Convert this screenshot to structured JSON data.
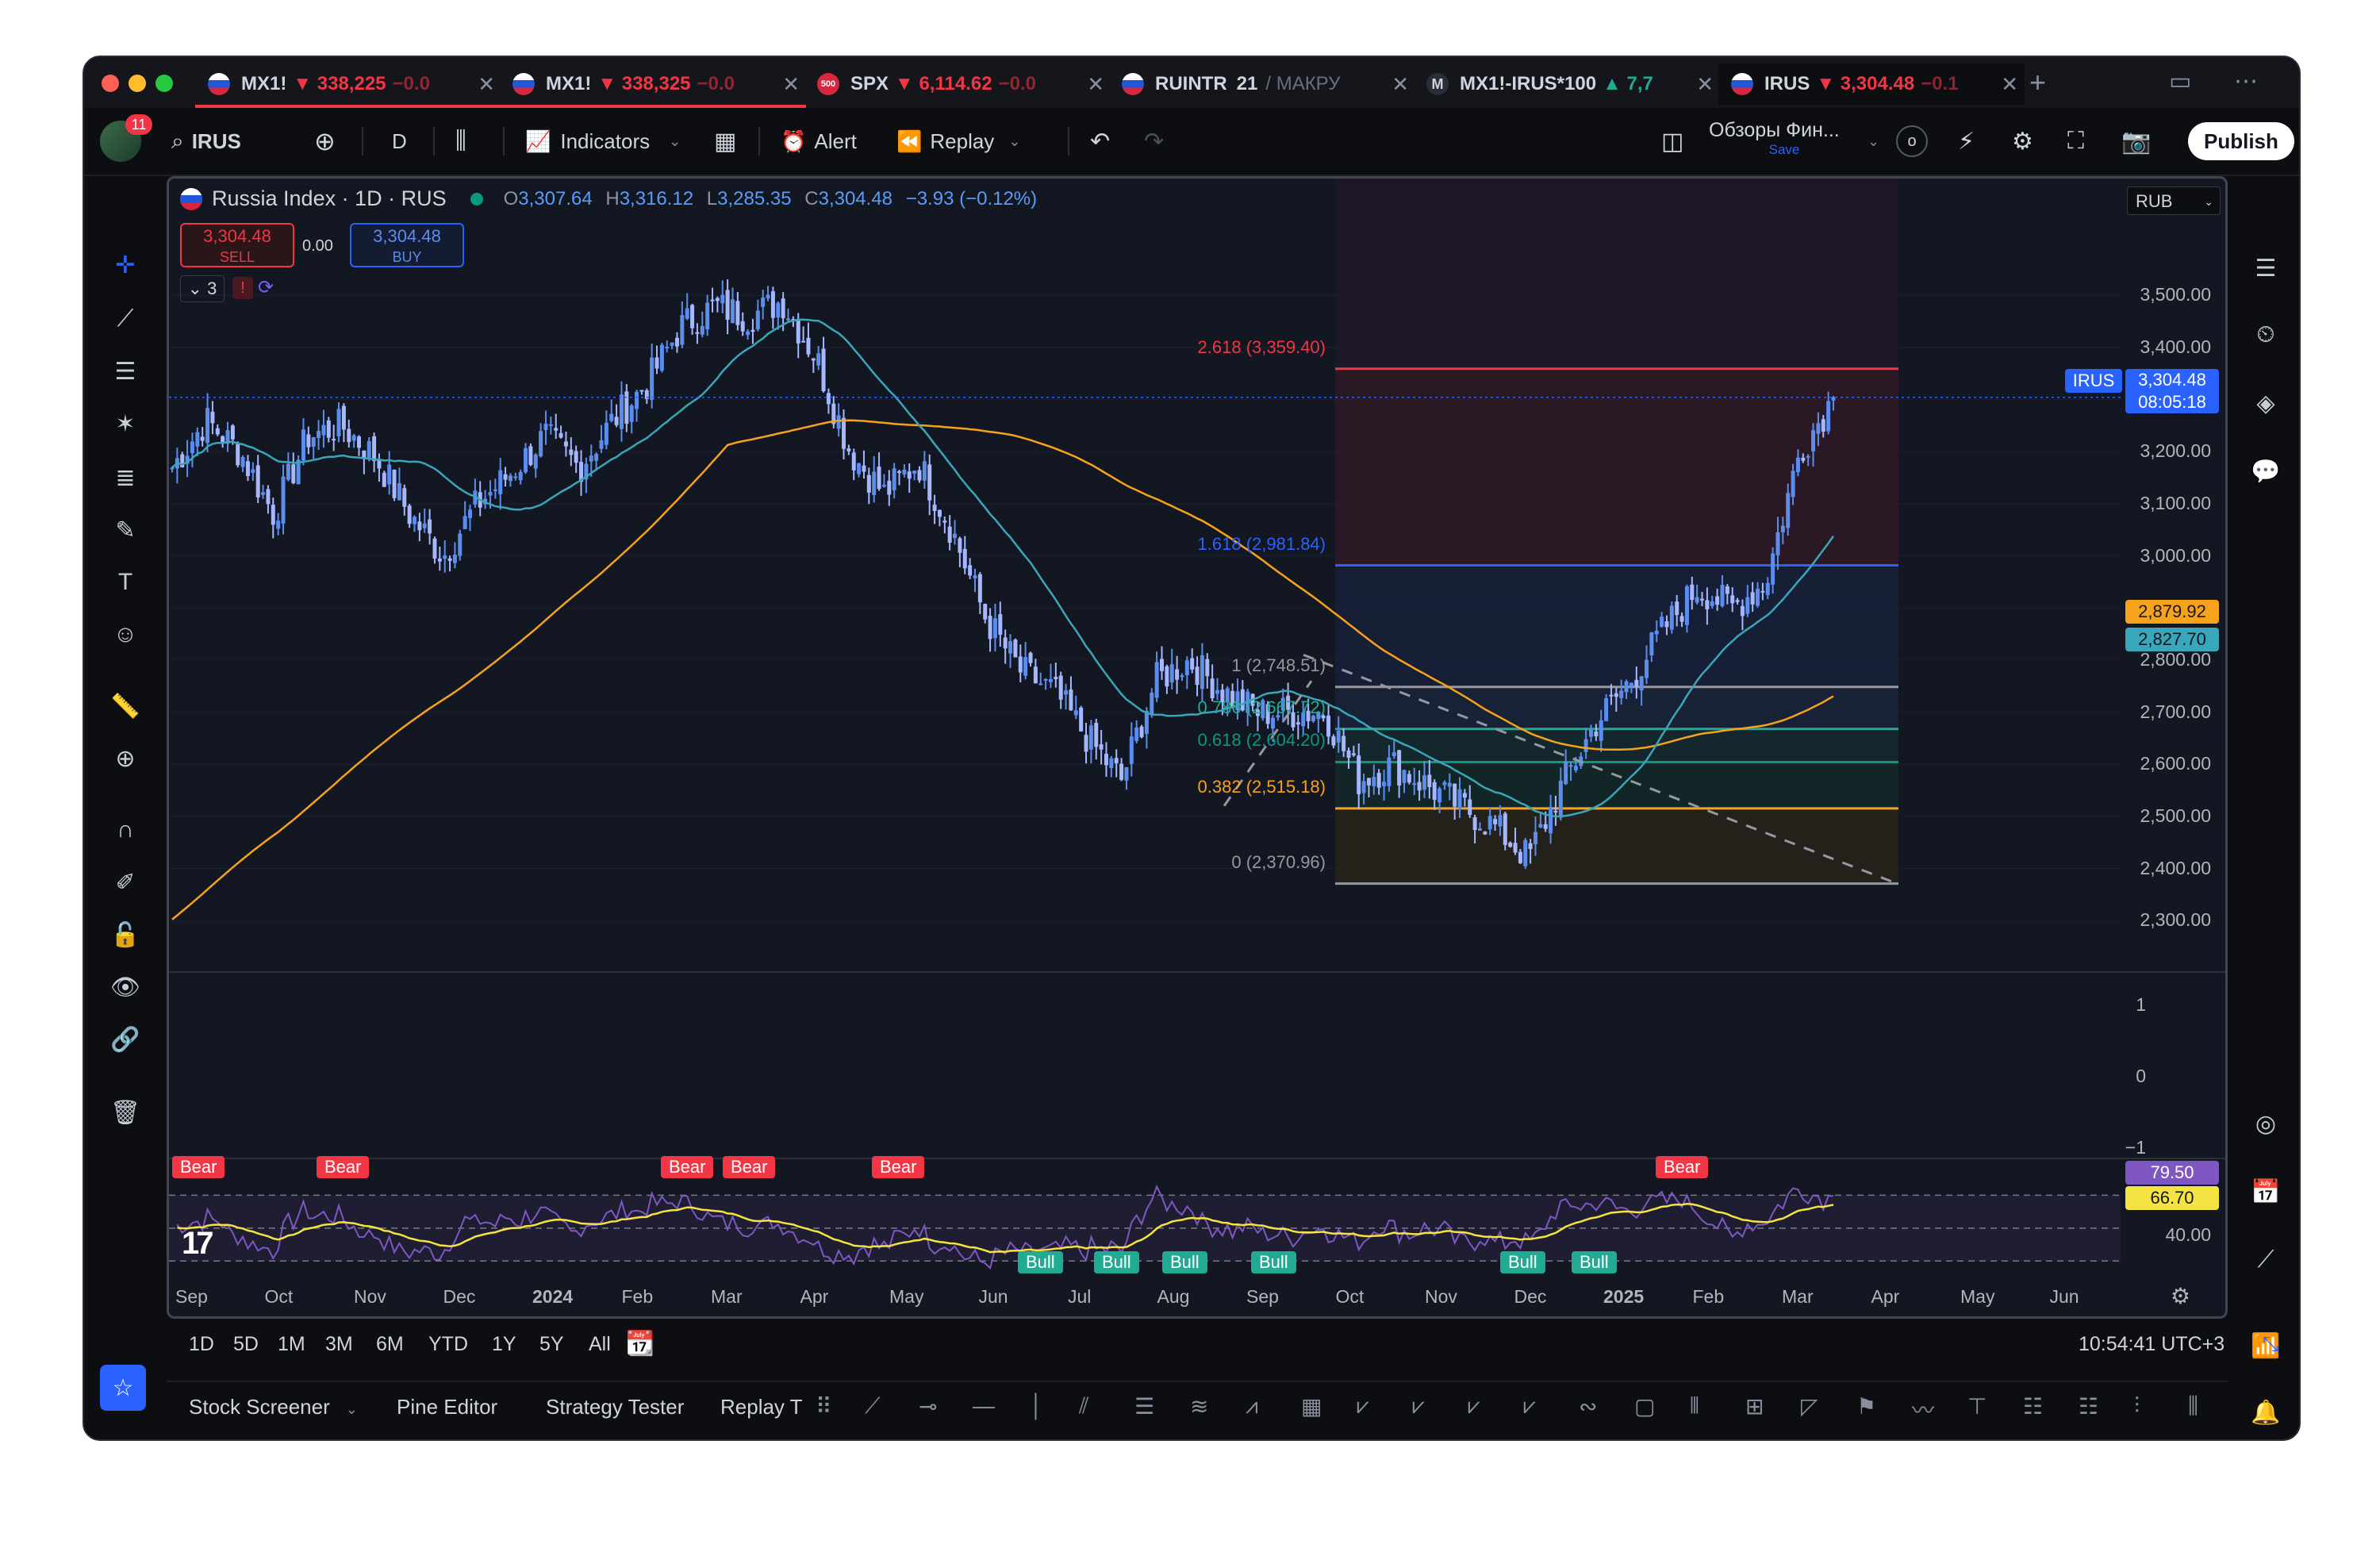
{
  "tabs": [
    {
      "symbol": "MX1!",
      "price": "▼ 338,225",
      "change": "−0.0",
      "active": false
    },
    {
      "symbol": "MX1!",
      "price": "▼ 338,325",
      "change": "−0.0",
      "active": false
    },
    {
      "symbol": "SPX",
      "price": "▼ 6,114.62",
      "change": "−0.0",
      "active": false,
      "flag_text": "500"
    },
    {
      "symbol": "RUINTR",
      "price": "21",
      "change": "/ МАКРУ",
      "active": false
    },
    {
      "symbol": "MX1!-IRUS*100",
      "price": "▲ 7,7",
      "change": "",
      "active": false,
      "flag_text": "M"
    },
    {
      "symbol": "IRUS",
      "price": "▼ 3,304.48",
      "change": "−0.1",
      "active": true
    }
  ],
  "toolbar": {
    "avatar_badge": "11",
    "symbol": "IRUS",
    "interval": "D",
    "indicators": "Indicators",
    "alert": "Alert",
    "replay": "Replay",
    "layout_name": "Обзоры Фин...",
    "layout_sub": "Save",
    "circle_letter": "o",
    "publish": "Publish"
  },
  "legend": {
    "title": "Russia Index · 1D · RUS",
    "o_label": "O",
    "o": "3,307.64",
    "h_label": "H",
    "h": "3,316.12",
    "l_label": "L",
    "l": "3,285.35",
    "c_label": "C",
    "c": "3,304.48",
    "change": "−3.93 (−0.12%)",
    "sell_price": "3,304.48",
    "sell_label": "SELL",
    "spread": "0.00",
    "buy_price": "3,304.48",
    "buy_label": "BUY",
    "collapsed_count": "3"
  },
  "currency": "RUB",
  "price_axis": [
    "3,500.00",
    "3,400.00",
    "3,300.00",
    "3,200.00",
    "3,100.00",
    "3,000.00",
    "2,900.00",
    "2,800.00",
    "2,700.00",
    "2,600.00",
    "2,500.00",
    "2,400.00",
    "2,300.00"
  ],
  "price_tags": {
    "symbol": "IRUS",
    "last": "3,304.48",
    "countdown": "08:05:18",
    "ma_orange": "2,879.92",
    "ma_teal": "2,827.70"
  },
  "fib_levels": [
    {
      "label": "2.618 (3,359.40)",
      "color": "#f23645"
    },
    {
      "label": "1.618 (2,981.84)",
      "color": "#2962ff"
    },
    {
      "label": "1 (2,748.51)",
      "color": "#9598a1"
    },
    {
      "label": "0.786 (2,667.72)",
      "color": "#22ab94"
    },
    {
      "label": "0.618 (2,604.20)",
      "color": "#089981"
    },
    {
      "label": "0.382 (2,515.18)",
      "color": "#f7a21b"
    },
    {
      "label": "0 (2,370.96)",
      "color": "#9598a1"
    }
  ],
  "sub_axis": [
    "1",
    "0",
    "−1"
  ],
  "rsi": {
    "value1": "79.50",
    "value2": "66.70",
    "level": "40.00",
    "bear_label": "Bear",
    "bull_label": "Bull",
    "bear_count": 7,
    "bull_count": 7
  },
  "time_axis": [
    "Sep",
    "Oct",
    "Nov",
    "Dec",
    "2024",
    "Feb",
    "Mar",
    "Apr",
    "May",
    "Jun",
    "Jul",
    "Aug",
    "Sep",
    "Oct",
    "Nov",
    "Dec",
    "2025",
    "Feb",
    "Mar",
    "Apr",
    "May",
    "Jun"
  ],
  "ranges": [
    "1D",
    "5D",
    "1M",
    "3M",
    "6M",
    "YTD",
    "1Y",
    "5Y",
    "All"
  ],
  "clock": "10:54:41 UTC+3",
  "panels": [
    "Stock Screener",
    "Pine Editor",
    "Strategy Tester",
    "Replay T"
  ],
  "chart_data": {
    "type": "candlestick",
    "title": "Russia Index · 1D · RUS",
    "ylim": [
      2250,
      3560
    ],
    "x": [
      "Sep",
      "Oct",
      "Nov",
      "Dec",
      "2024",
      "Feb",
      "Mar",
      "Apr",
      "May",
      "Jun",
      "Jul",
      "Aug",
      "Sep",
      "Oct",
      "Nov",
      "Dec",
      "2025",
      "Feb"
    ],
    "close_path": [
      3170,
      3260,
      3200,
      3080,
      3230,
      3250,
      3190,
      3080,
      3000,
      3100,
      3160,
      3230,
      3170,
      3260,
      3330,
      3440,
      3480,
      3460,
      3490,
      3380,
      3200,
      3120,
      3180,
      3050,
      2880,
      2780,
      2740,
      2650,
      2570,
      2760,
      2800,
      2740,
      2700,
      2700,
      2700,
      2570,
      2600,
      2560,
      2520,
      2480,
      2420,
      2560,
      2680,
      2760,
      2860,
      2940,
      2900,
      2950,
      3200,
      3304.48
    ],
    "series": [
      {
        "name": "MA",
        "last": 2827.7
      },
      {
        "name": "MA",
        "last": 2879.92
      }
    ],
    "fibonacci": {
      "2.618": 3359.4,
      "1.618": 2981.84,
      "1": 2748.51,
      "0.786": 2667.72,
      "0.618": 2604.2,
      "0.382": 2515.18,
      "0": 2370.96
    },
    "last_price": 3304.48
  },
  "colors": {
    "accent": "#2962ff",
    "up": "#5b8def",
    "down": "#9db3ff",
    "bear": "#f23645",
    "bull": "#22ab94",
    "ma_orange": "#f7a21b",
    "ma_teal": "#3aa6b9"
  }
}
